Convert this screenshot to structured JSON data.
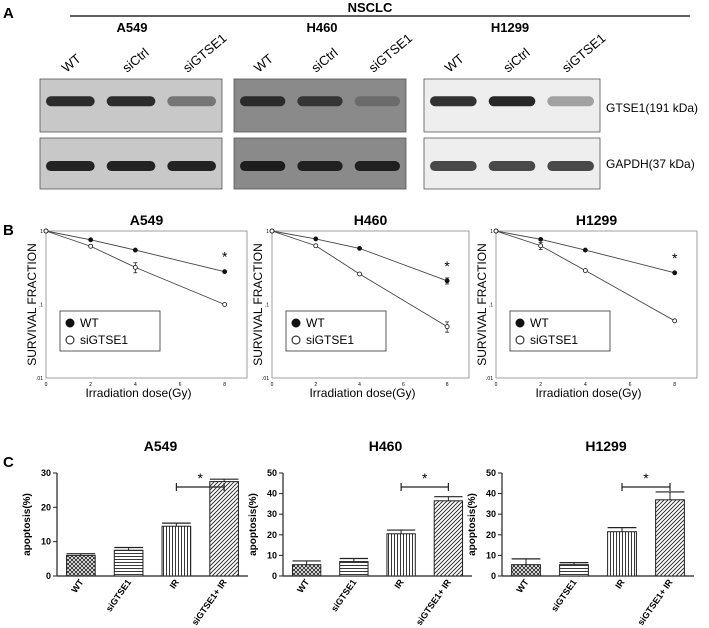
{
  "panel_a": {
    "letter": "A",
    "group_label": "NSCLC",
    "cell_lines": [
      "A549",
      "H460",
      "H1299"
    ],
    "lanes": [
      "WT",
      "siCtrl",
      "siGTSE1"
    ],
    "bands": [
      "GTSE1(191 kDa)",
      "GAPDH(37 kDa)"
    ],
    "blot_colors": {
      "A549": "#c8c8c8",
      "H460": "#8a8a8a",
      "H1299": "#eeeeee"
    }
  },
  "panel_b": {
    "letter": "B"
  },
  "panel_c": {
    "letter": "C"
  },
  "chart_data": [
    {
      "type": "line",
      "panel": "B",
      "title": "A549",
      "xlabel": "Irradiation dose(Gy)",
      "ylabel": "SURVIVAL FRACTION",
      "x_ticks": [
        "0",
        "2",
        "4",
        "6",
        "8"
      ],
      "y_ticks": [
        "1",
        ".1",
        ".01"
      ],
      "y_scale": "log",
      "xlim": [
        0,
        9
      ],
      "ylim": [
        0.01,
        1
      ],
      "legend_position": "bottom-left",
      "significance": "*",
      "series": [
        {
          "name": "WT",
          "marker": "filled-circle",
          "x": [
            0,
            2,
            4,
            8
          ],
          "y": [
            1.0,
            0.76,
            0.55,
            0.28
          ],
          "err": [
            0,
            0,
            0,
            0
          ]
        },
        {
          "name": "siGTSE1",
          "marker": "open-circle",
          "x": [
            0,
            2,
            4,
            8
          ],
          "y": [
            1.0,
            0.62,
            0.32,
            0.1
          ],
          "err": [
            0,
            0,
            0.05,
            0
          ]
        }
      ]
    },
    {
      "type": "line",
      "panel": "B",
      "title": "H460",
      "xlabel": "Irradiation dose(Gy)",
      "ylabel": "SURVIVAL FRACTION",
      "x_ticks": [
        "0",
        "2",
        "4",
        "6",
        "8"
      ],
      "y_ticks": [
        "1",
        ".1",
        ".01"
      ],
      "y_scale": "log",
      "xlim": [
        0,
        9
      ],
      "ylim": [
        0.01,
        1
      ],
      "legend_position": "bottom-left",
      "significance": "*",
      "series": [
        {
          "name": "WT",
          "marker": "filled-circle",
          "x": [
            0,
            2,
            4,
            8
          ],
          "y": [
            1.0,
            0.78,
            0.58,
            0.21
          ],
          "err": [
            0,
            0,
            0,
            0.02
          ]
        },
        {
          "name": "siGTSE1",
          "marker": "open-circle",
          "x": [
            0,
            2,
            4,
            8
          ],
          "y": [
            1.0,
            0.63,
            0.26,
            0.05
          ],
          "err": [
            0,
            0,
            0,
            0.008
          ]
        }
      ]
    },
    {
      "type": "line",
      "panel": "B",
      "title": "H1299",
      "xlabel": "Irradiation dose(Gy)",
      "ylabel": "SURVIVAL FRACTION",
      "x_ticks": [
        "0",
        "2",
        "4",
        "6",
        "8"
      ],
      "y_ticks": [
        "1",
        ".1",
        ".01"
      ],
      "y_scale": "log",
      "xlim": [
        0,
        9
      ],
      "ylim": [
        0.01,
        1
      ],
      "legend_position": "bottom-left",
      "significance": "*",
      "series": [
        {
          "name": "WT",
          "marker": "filled-circle",
          "x": [
            0,
            2,
            4,
            8
          ],
          "y": [
            1.0,
            0.77,
            0.55,
            0.27
          ],
          "err": [
            0,
            0,
            0,
            0
          ]
        },
        {
          "name": "siGTSE1",
          "marker": "open-circle",
          "x": [
            0,
            2,
            4,
            8
          ],
          "y": [
            1.0,
            0.63,
            0.29,
            0.06
          ],
          "err": [
            0,
            0.07,
            0,
            0
          ]
        }
      ]
    },
    {
      "type": "bar",
      "panel": "C",
      "title": "A549",
      "ylabel": "apoptosis(%)",
      "categories": [
        "WT",
        "siGTSE1",
        "IR",
        "siGTSE1+ IR"
      ],
      "values": [
        6.0,
        7.5,
        14.5,
        27.5
      ],
      "errors": [
        0.5,
        0.8,
        0.9,
        0.7
      ],
      "patterns": [
        "cross",
        "horizontal",
        "vertical",
        "diagonal"
      ],
      "ylim": [
        0,
        30
      ],
      "y_ticks": [
        "0",
        "10",
        "20",
        "30"
      ],
      "significance": {
        "label": "*",
        "from": 2,
        "to": 3
      }
    },
    {
      "type": "bar",
      "panel": "C",
      "title": "H460",
      "ylabel": "apoptosis(%)",
      "categories": [
        "WT",
        "siGTSE1",
        "IR",
        "siGTSE1+ IR"
      ],
      "values": [
        5.5,
        7.0,
        20.5,
        36.5
      ],
      "errors": [
        1.8,
        1.5,
        1.8,
        2.0
      ],
      "patterns": [
        "cross",
        "horizontal",
        "vertical",
        "diagonal"
      ],
      "ylim": [
        0,
        50
      ],
      "y_ticks": [
        "0",
        "10",
        "20",
        "30",
        "40",
        "50"
      ],
      "significance": {
        "label": "*",
        "from": 2,
        "to": 3
      }
    },
    {
      "type": "bar",
      "panel": "C",
      "title": "H1299",
      "ylabel": "apoptosis(%)",
      "categories": [
        "WT",
        "siGTSE1",
        "IR",
        "siGTSE1+ IR"
      ],
      "values": [
        5.5,
        5.5,
        21.5,
        37.0
      ],
      "errors": [
        2.8,
        1.0,
        2.0,
        3.8
      ],
      "patterns": [
        "cross",
        "horizontal",
        "vertical",
        "diagonal"
      ],
      "ylim": [
        0,
        50
      ],
      "y_ticks": [
        "0",
        "10",
        "20",
        "30",
        "40",
        "50"
      ],
      "significance": {
        "label": "*",
        "from": 2,
        "to": 3
      }
    }
  ]
}
